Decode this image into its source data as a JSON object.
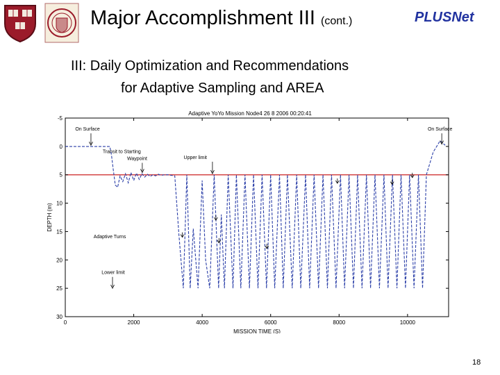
{
  "header": {
    "title_main": "Major Accomplishment III",
    "title_suffix": "(cont.)",
    "brand": "PLUSNet",
    "logos": [
      "harvard-shield-icon",
      "harvard-seal-icon"
    ]
  },
  "subtitle": {
    "line1": "III:   Daily Optimization and Recommendations",
    "line2": "for Adaptive Sampling and AREA"
  },
  "page_number": "18",
  "chart_data": {
    "type": "line",
    "title": "Adaptive YoYo Mission Node4 26 8 2006     00:20:41",
    "xlabel": "MISSION TIME (S)",
    "ylabel": "DEPTH (m)",
    "xlim": [
      0,
      11200
    ],
    "ylim": [
      -5,
      30
    ],
    "y_inverted": true,
    "xticks": [
      0,
      2000,
      4000,
      6000,
      8000,
      10000
    ],
    "yticks": [
      -5,
      0,
      5,
      10,
      15,
      20,
      25,
      30
    ],
    "grid": false,
    "reference_lines": [
      {
        "name": "Upper limit",
        "y": 5,
        "color": "#cc2222"
      }
    ],
    "series": [
      {
        "color": "#2b3fa8",
        "dash": true,
        "x": [
          0,
          1300,
          1350,
          1400,
          1460,
          1530,
          1600,
          1680,
          1760,
          1840,
          1920,
          2000,
          2080,
          2160,
          2240,
          2320,
          2400,
          2480,
          2560,
          2640,
          2720,
          2800,
          2900,
          3000,
          3100,
          3200,
          3320,
          3450,
          3550,
          3650,
          3740,
          3880,
          4000,
          4100,
          4220,
          4350,
          4480,
          4560,
          4650,
          4760,
          4900,
          5000,
          5130,
          5250,
          5380,
          5500,
          5630,
          5750,
          5880,
          6000,
          6120,
          6260,
          6370,
          6490,
          6630,
          6760,
          6880,
          7020,
          7140,
          7270,
          7400,
          7530,
          7660,
          7780,
          7910,
          8040,
          8160,
          8290,
          8420,
          8540,
          8670,
          8800,
          8920,
          9050,
          9180,
          9310,
          9430,
          9560,
          9690,
          9810,
          9940,
          10060,
          10190,
          10320,
          10440,
          10550,
          10650,
          10750,
          10850,
          10950,
          11100
        ],
        "y": [
          0,
          0,
          1.5,
          4,
          6.8,
          7.2,
          5.2,
          6.2,
          4.8,
          6.4,
          4.6,
          6.0,
          4.7,
          5.8,
          4.8,
          5.4,
          4.9,
          5.3,
          5.0,
          5.2,
          4.9,
          5.1,
          5.0,
          5.0,
          5.1,
          5.2,
          15.5,
          25.0,
          5.0,
          25.0,
          14.5,
          25.0,
          6.0,
          20.0,
          25.0,
          5.0,
          25.0,
          12.0,
          25.0,
          5.0,
          25.0,
          5.0,
          25.0,
          5.0,
          25.0,
          5.0,
          25.0,
          5.0,
          25.0,
          5.0,
          25.0,
          5.0,
          25.0,
          5.0,
          25.0,
          5.0,
          25.0,
          5.0,
          25.0,
          5.0,
          25.0,
          5.0,
          25.0,
          5.0,
          25.0,
          5.0,
          25.0,
          5.0,
          25.0,
          5.0,
          25.0,
          5.0,
          25.0,
          5.0,
          25.0,
          5.0,
          25.0,
          5.0,
          25.0,
          5.0,
          25.0,
          5.0,
          25.0,
          5.0,
          25.0,
          5.0,
          3.0,
          1.0,
          0.0,
          -1.0,
          -0.2
        ]
      }
    ],
    "annotations": [
      {
        "text": "On Surface",
        "x": 650,
        "y": -2.8,
        "arrow_x": 750,
        "arrow_y": -0.2
      },
      {
        "text": "Transit to Starting",
        "x": 1650,
        "y": 1.2
      },
      {
        "text": "Waypoint",
        "x": 2100,
        "y": 2.4,
        "arrow_x": 2250,
        "arrow_y": 4.6
      },
      {
        "text": "Upper limit",
        "x": 3800,
        "y": 2.2,
        "arrow_x": 4300,
        "arrow_y": 4.8
      },
      {
        "text": "On Surface",
        "x": 10950,
        "y": -2.8,
        "arrow_x": 11000,
        "arrow_y": -0.4
      },
      {
        "text": "Adaptive Turns",
        "x": 1300,
        "y": 16.2
      },
      {
        "text": "Lower limit",
        "x": 1400,
        "y": 22.5,
        "arrow_x": 1380,
        "arrow_y": 25.0
      }
    ],
    "markers": [
      {
        "x": 3420,
        "y": 16.0
      },
      {
        "x": 4400,
        "y": 13.0
      },
      {
        "x": 4490,
        "y": 17.0
      },
      {
        "x": 5890,
        "y": 18.0
      },
      {
        "x": 7950,
        "y": 6.5
      },
      {
        "x": 9550,
        "y": 6.7
      },
      {
        "x": 10140,
        "y": 5.5
      }
    ]
  }
}
